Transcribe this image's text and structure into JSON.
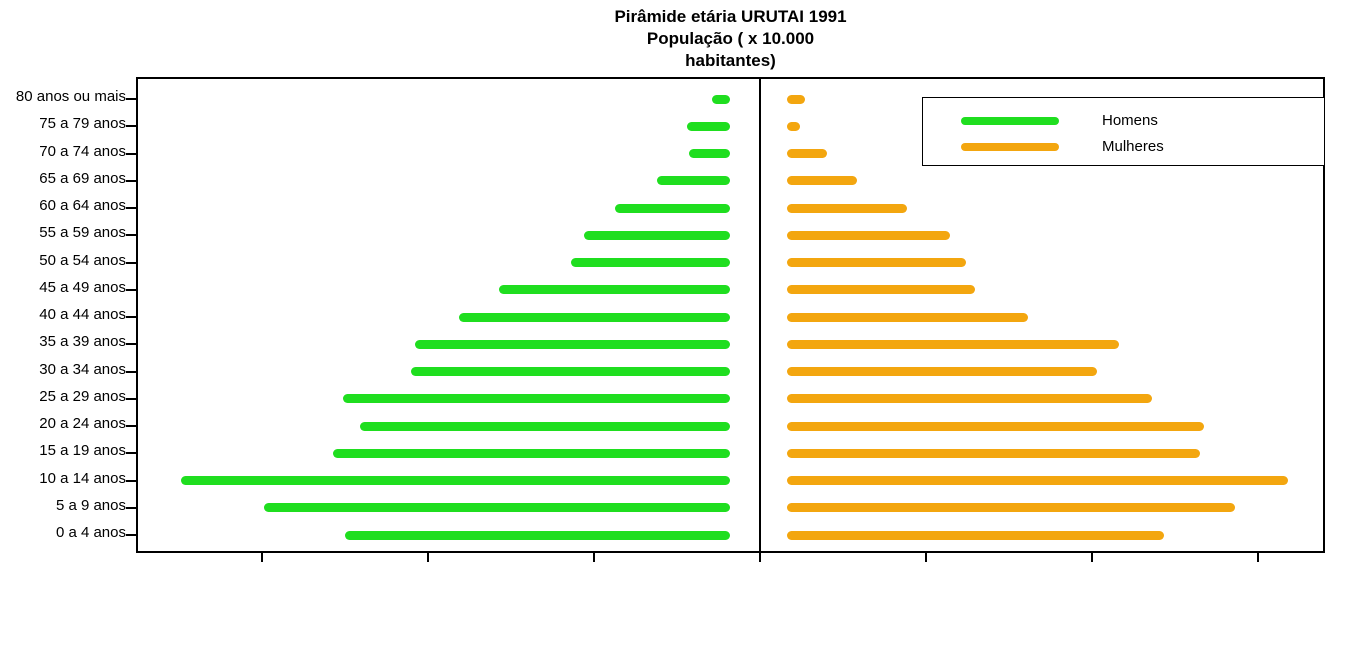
{
  "title": {
    "line1": "Pirâmide etária URUTAI 1991",
    "line2": "População ( x 10.000",
    "line3": "habitantes)"
  },
  "legend": {
    "homens_label": "Homens",
    "mulheres_label": "Mulheres"
  },
  "colors": {
    "homens": "#1FDE1F",
    "mulheres": "#F3A60F",
    "axis": "#000000",
    "background": "#FFFFFF"
  },
  "chart_data": {
    "type": "bar",
    "subtype": "population-pyramid",
    "title": "Pirâmide etária URUTAI 1991",
    "subtitle": "População ( x 10.000 habitantes)",
    "categories": [
      "80 anos ou mais",
      "75 a 79 anos",
      "70 a 74 anos",
      "65 a 69 anos",
      "60 a 64 anos",
      "55 a 59 anos",
      "50 a 54 anos",
      "45 a 49 anos",
      "40 a 44 anos",
      "35 a 39 anos",
      "30 a 34 anos",
      "25 a 29 anos",
      "20 a 24 anos",
      "15 a 19 anos",
      "10 a 14 anos",
      "5 a 9 anos",
      "0 a 4 anos"
    ],
    "series": [
      {
        "name": "Homens",
        "side": "left",
        "color": "#1FDE1F",
        "values": [
          0.11,
          0.26,
          0.25,
          0.44,
          0.69,
          0.88,
          0.96,
          1.39,
          1.63,
          1.9,
          1.92,
          2.33,
          2.23,
          2.39,
          3.31,
          2.81,
          2.32
        ]
      },
      {
        "name": "Mulheres",
        "side": "right",
        "color": "#F3A60F",
        "values": [
          0.11,
          0.08,
          0.24,
          0.42,
          0.72,
          0.98,
          1.08,
          1.13,
          1.45,
          2.0,
          1.87,
          2.2,
          2.51,
          2.49,
          3.02,
          2.7,
          2.27
        ]
      }
    ],
    "x_axis": {
      "tick_count": 7,
      "tick_labels": [],
      "note": "ticks are unlabeled; values estimated in tick-interval units (1 unit = 1 tick spacing)",
      "range_per_side": [
        0,
        3.6
      ]
    },
    "y_axis": {
      "label": "",
      "ticks_outside": true
    },
    "legend_position": "top-right",
    "grid": false
  }
}
